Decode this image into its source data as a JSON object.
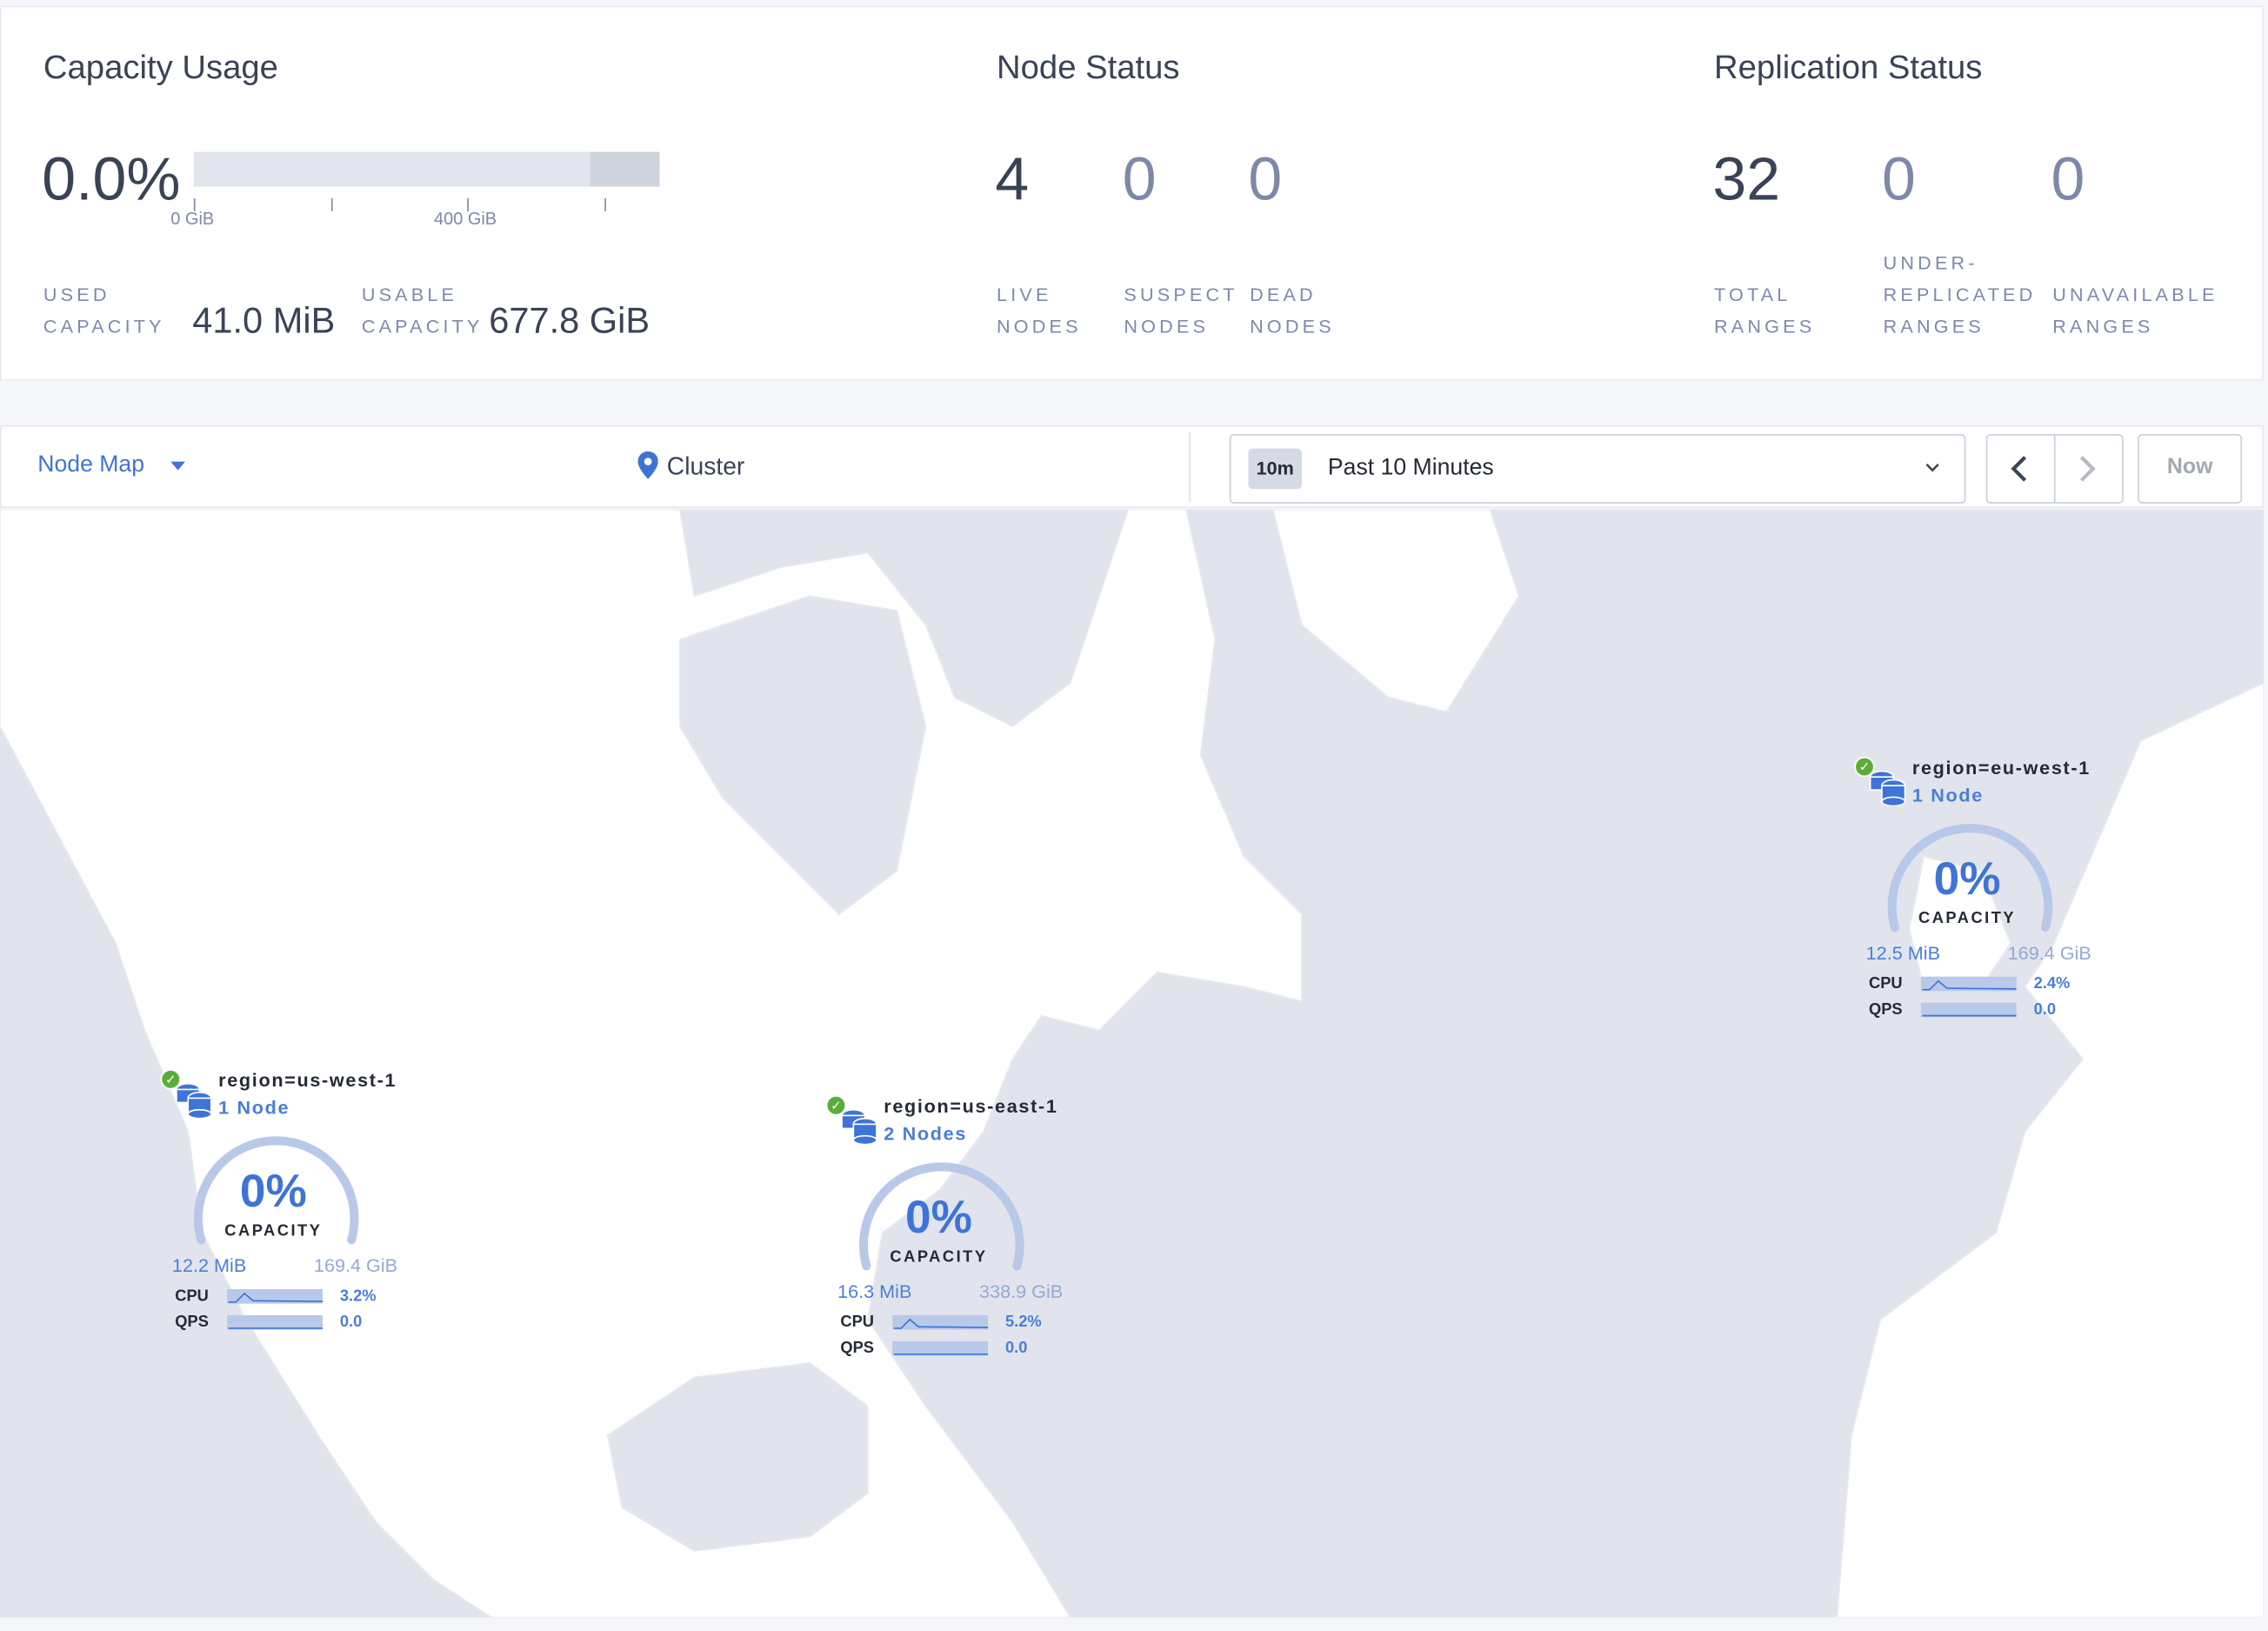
{
  "capacity": {
    "title": "Capacity Usage",
    "percent": "0.0%",
    "used_fraction": 0.0,
    "axis_ticks": [
      "0 GiB",
      "400 GiB"
    ],
    "used_label": [
      "USED",
      "CAPACITY"
    ],
    "used_value": "41.0 MiB",
    "usable_label": [
      "USABLE",
      "CAPACITY"
    ],
    "usable_value": "677.8 GiB"
  },
  "node_status": {
    "title": "Node Status",
    "stats": [
      {
        "value": "4",
        "label": [
          "LIVE",
          "NODES"
        ]
      },
      {
        "value": "0",
        "label": [
          "SUSPECT",
          "NODES"
        ]
      },
      {
        "value": "0",
        "label": [
          "DEAD",
          "NODES"
        ]
      }
    ]
  },
  "replication": {
    "title": "Replication Status",
    "stats": [
      {
        "value": "32",
        "label": [
          "",
          "TOTAL",
          "RANGES"
        ]
      },
      {
        "value": "0",
        "label": [
          "UNDER-",
          "REPLICATED",
          "RANGES"
        ]
      },
      {
        "value": "0",
        "label": [
          "",
          "UNAVAILABLE",
          "RANGES"
        ]
      }
    ]
  },
  "toolbar": {
    "view_select": "Node Map",
    "breadcrumb": "Cluster",
    "time_badge": "10m",
    "time_range": "Past 10 Minutes",
    "now_label": "Now",
    "icons": {
      "view": "caret-down-icon",
      "breadcrumb": "map-pin-icon",
      "range": "chevron-down-icon",
      "prev": "chevron-left-icon",
      "next": "chevron-right-icon"
    }
  },
  "colors": {
    "accent": "#3f74d6",
    "healthy": "#5bad3a",
    "water": "#e1e4ec",
    "land": "#ffffff"
  },
  "clusters": [
    {
      "name": "region=us-west-1",
      "nodes": "1 Node",
      "capacity_pct": "0%",
      "capacity_label": "CAPACITY",
      "used": "12.2 MiB",
      "total": "169.4 GiB",
      "cpu_label": "CPU",
      "cpu": "3.2%",
      "qps_label": "QPS",
      "qps": "0.0",
      "status": "healthy"
    },
    {
      "name": "region=us-east-1",
      "nodes": "2 Nodes",
      "capacity_pct": "0%",
      "capacity_label": "CAPACITY",
      "used": "16.3 MiB",
      "total": "338.9 GiB",
      "cpu_label": "CPU",
      "cpu": "5.2%",
      "qps_label": "QPS",
      "qps": "0.0",
      "status": "healthy"
    },
    {
      "name": "region=eu-west-1",
      "nodes": "1 Node",
      "capacity_pct": "0%",
      "capacity_label": "CAPACITY",
      "used": "12.5 MiB",
      "total": "169.4 GiB",
      "cpu_label": "CPU",
      "cpu": "2.4%",
      "qps_label": "QPS",
      "qps": "0.0",
      "status": "healthy"
    }
  ]
}
